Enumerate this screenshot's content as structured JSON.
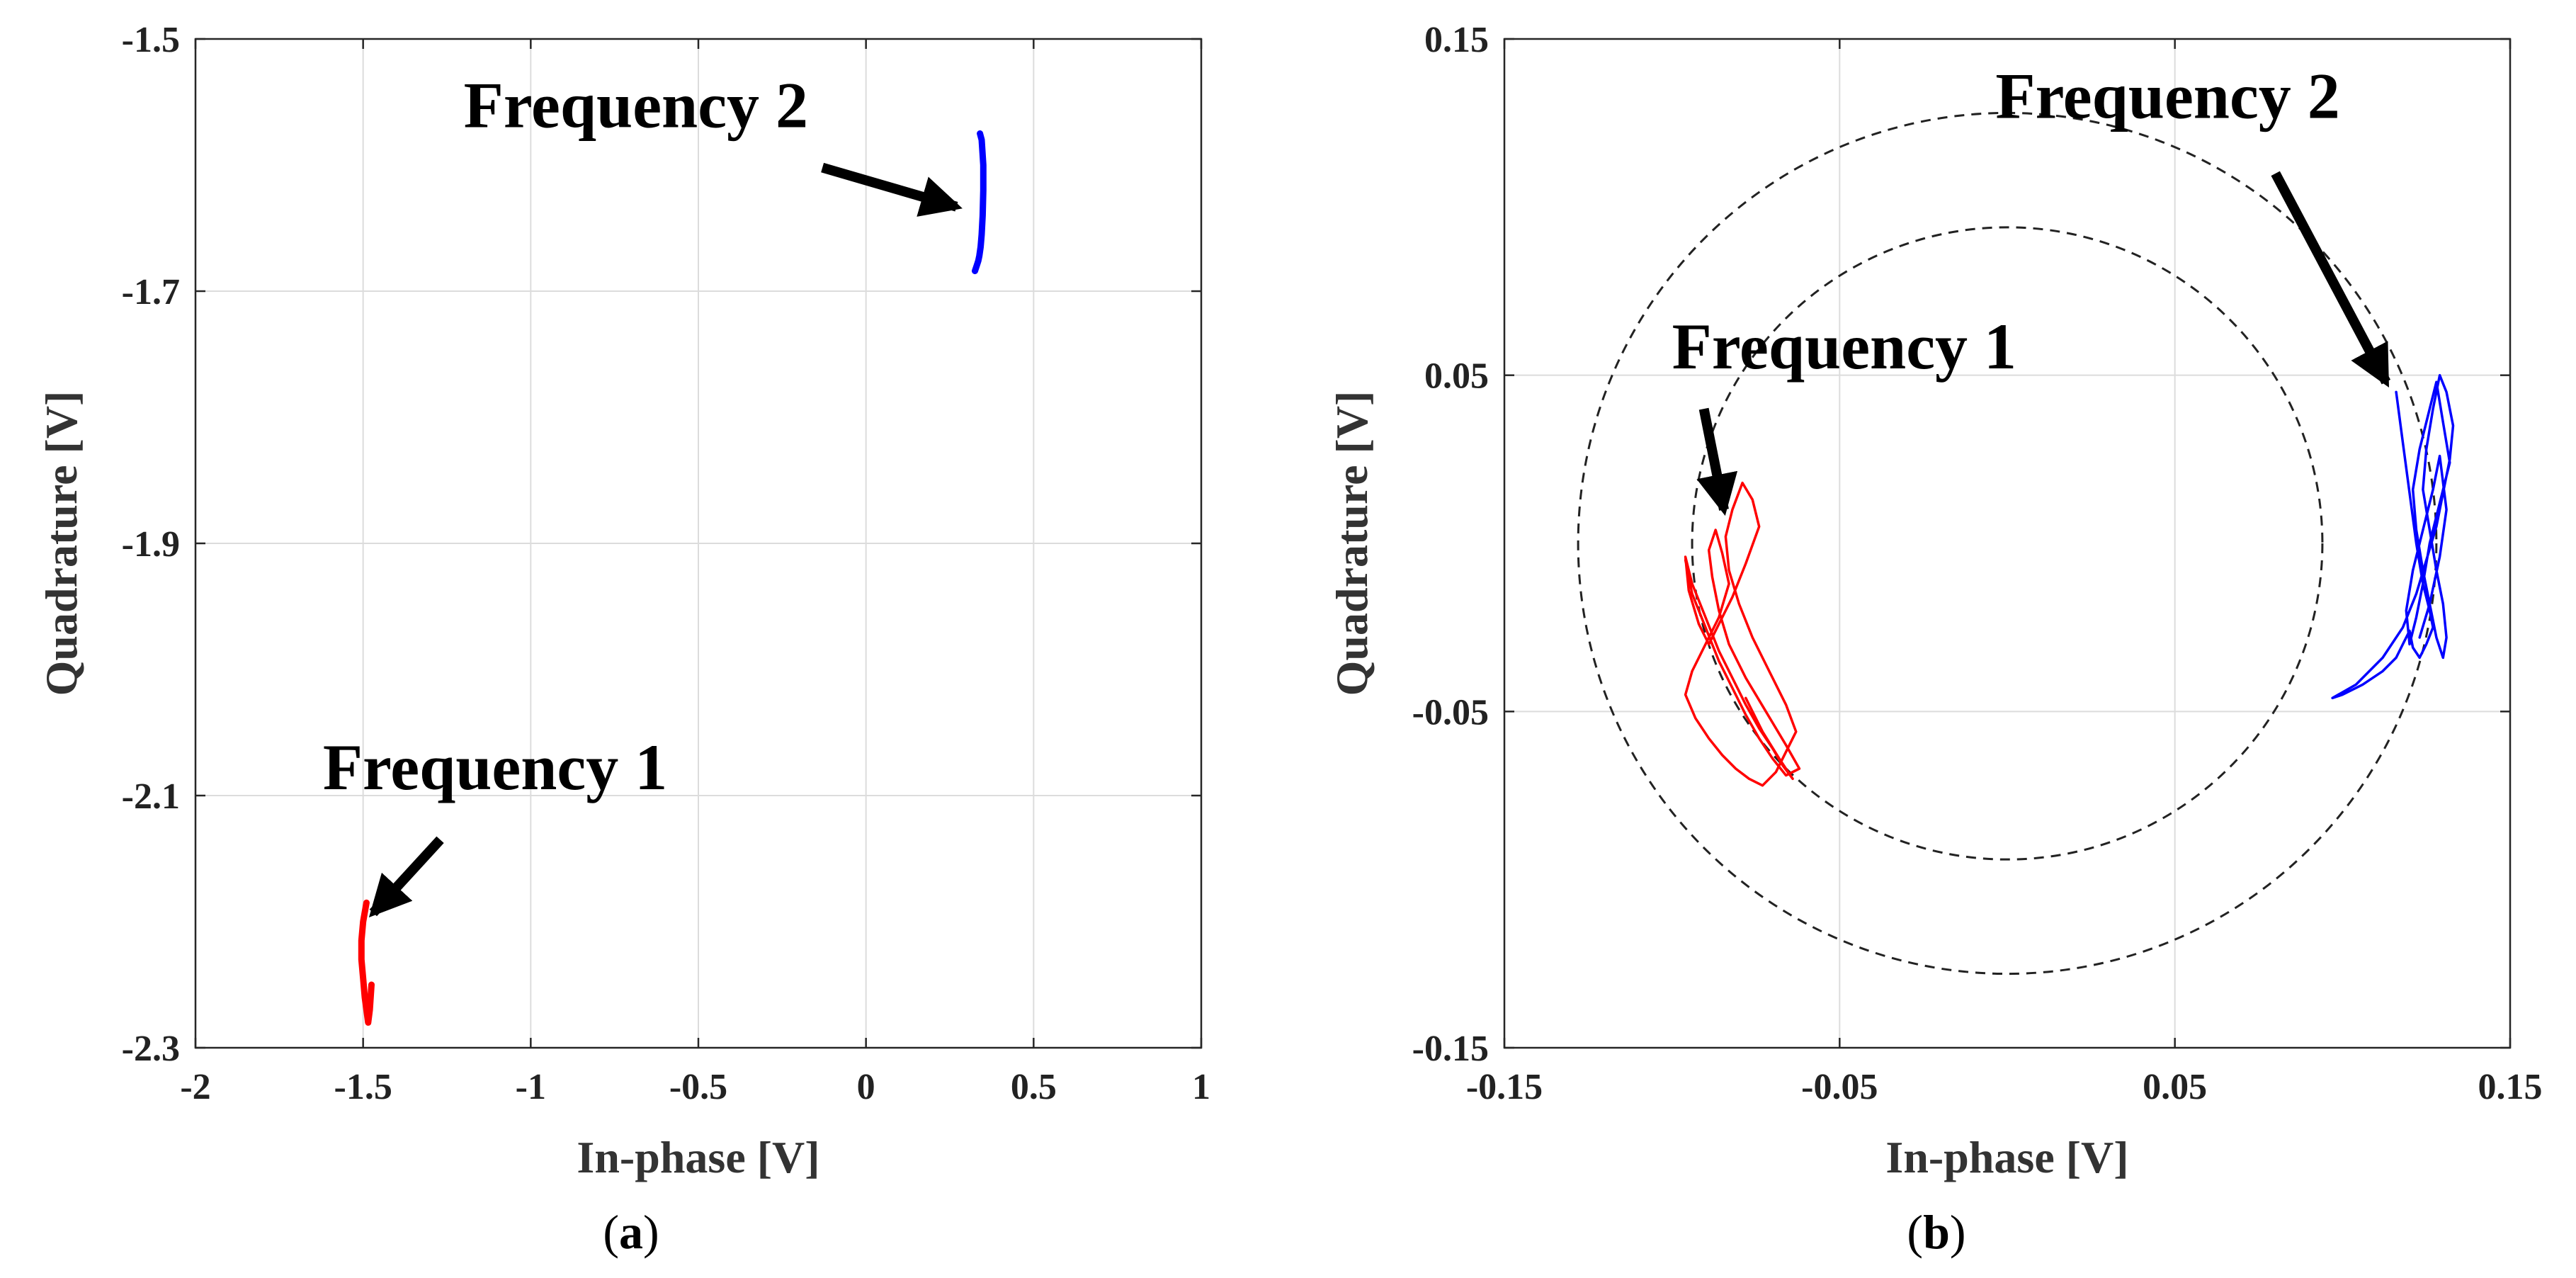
{
  "chart_data": [
    {
      "id": "a",
      "type": "line",
      "panel_label": "a",
      "xlabel": "In-phase [V]",
      "ylabel": "Quadrature [V]",
      "xlim": [
        -2,
        1
      ],
      "ylim": [
        -2.3,
        -1.5
      ],
      "xticks": [
        -2,
        -1.5,
        -1,
        -0.5,
        0,
        0.5,
        1
      ],
      "xtick_labels": [
        "-2",
        "-1.5",
        "-1",
        "-0.5",
        "0",
        "0.5",
        "1"
      ],
      "yticks": [
        -2.3,
        -2.1,
        -1.9,
        -1.7,
        -1.5
      ],
      "ytick_labels": [
        "-2.3",
        "-2.1",
        "-1.9",
        "-1.7",
        "-1.5"
      ],
      "grid": true,
      "series": [
        {
          "name": "Frequency 1",
          "color": "#ff0000",
          "x": [
            -1.49,
            -1.5,
            -1.505,
            -1.505,
            -1.5,
            -1.495,
            -1.49,
            -1.485,
            -1.48,
            -1.475
          ],
          "y": [
            -2.185,
            -2.2,
            -2.215,
            -2.23,
            -2.245,
            -2.26,
            -2.27,
            -2.28,
            -2.27,
            -2.25
          ]
        },
        {
          "name": "Frequency 2",
          "color": "#0000ff",
          "x": [
            0.34,
            0.345,
            0.35,
            0.35,
            0.348,
            0.345,
            0.342,
            0.338,
            0.335,
            0.33,
            0.325
          ],
          "y": [
            -1.575,
            -1.58,
            -1.6,
            -1.62,
            -1.64,
            -1.655,
            -1.665,
            -1.672,
            -1.676,
            -1.68,
            -1.684
          ]
        }
      ],
      "annotations": [
        {
          "text": "Frequency 2",
          "label_at": [
            -1.2,
            -1.57
          ],
          "arrow_from": [
            -0.13,
            -1.602
          ],
          "arrow_to": [
            0.27,
            -1.633
          ]
        },
        {
          "text": "Frequency 1",
          "label_at": [
            -1.62,
            -2.095
          ],
          "arrow_from": [
            -1.27,
            -2.135
          ],
          "arrow_to": [
            -1.47,
            -2.193
          ]
        }
      ]
    },
    {
      "id": "b",
      "type": "line",
      "panel_label": "b",
      "xlabel": "In-phase [V]",
      "ylabel": "Quadrature [V]",
      "xlim": [
        -0.15,
        0.15
      ],
      "ylim": [
        -0.15,
        0.15
      ],
      "xticks": [
        -0.15,
        -0.05,
        0.05,
        0.15
      ],
      "xtick_labels": [
        "-0.15",
        "-0.05",
        "0.05",
        "0.15"
      ],
      "yticks": [
        -0.15,
        -0.05,
        0.05,
        0.15
      ],
      "ytick_labels": [
        "-0.15",
        "-0.05",
        "0.05",
        "0.15"
      ],
      "grid": true,
      "circles": [
        {
          "cx": 0,
          "cy": 0,
          "r": 0.094,
          "style": "dashed"
        },
        {
          "cx": 0,
          "cy": 0,
          "r": 0.128,
          "style": "dashed"
        }
      ],
      "series": [
        {
          "name": "Frequency 1",
          "color": "#ff0000",
          "x": [
            -0.096,
            -0.094,
            -0.09,
            -0.086,
            -0.082,
            -0.078,
            -0.074,
            -0.07,
            -0.066,
            -0.062,
            -0.066,
            -0.072,
            -0.078,
            -0.083,
            -0.086,
            -0.088,
            -0.089,
            -0.087,
            -0.085,
            -0.083,
            -0.086,
            -0.09,
            -0.094,
            -0.096,
            -0.093,
            -0.089,
            -0.085,
            -0.081,
            -0.077,
            -0.073,
            -0.069,
            -0.066,
            -0.063,
            -0.066,
            -0.071,
            -0.076,
            -0.08,
            -0.083,
            -0.084,
            -0.082,
            -0.079,
            -0.076,
            -0.074,
            -0.078,
            -0.082,
            -0.086,
            -0.089,
            -0.092,
            -0.095,
            -0.096,
            -0.094,
            -0.09,
            -0.086,
            -0.082,
            -0.078,
            -0.074,
            -0.07,
            -0.067,
            -0.064,
            -0.068,
            -0.073,
            -0.078
          ],
          "y": [
            -0.005,
            -0.015,
            -0.025,
            -0.035,
            -0.043,
            -0.051,
            -0.058,
            -0.064,
            -0.069,
            -0.067,
            -0.06,
            -0.05,
            -0.04,
            -0.03,
            -0.02,
            -0.01,
            -0.002,
            0.004,
            -0.003,
            -0.012,
            -0.022,
            -0.03,
            -0.038,
            -0.045,
            -0.052,
            -0.058,
            -0.063,
            -0.067,
            -0.07,
            -0.072,
            -0.068,
            -0.062,
            -0.056,
            -0.048,
            -0.038,
            -0.028,
            -0.018,
            -0.008,
            0.002,
            0.01,
            0.018,
            0.013,
            0.005,
            -0.006,
            -0.016,
            -0.024,
            -0.03,
            -0.024,
            -0.014,
            -0.004,
            -0.012,
            -0.022,
            -0.032,
            -0.04,
            -0.048,
            -0.055,
            -0.061,
            -0.066,
            -0.07,
            -0.064,
            -0.056,
            -0.046
          ]
        },
        {
          "name": "Frequency 2",
          "color": "#0000ff",
          "x": [
            0.116,
            0.118,
            0.12,
            0.122,
            0.124,
            0.126,
            0.127,
            0.125,
            0.123,
            0.121,
            0.12,
            0.118,
            0.116,
            0.112,
            0.106,
            0.1,
            0.097,
            0.104,
            0.112,
            0.118,
            0.122,
            0.125,
            0.128,
            0.13,
            0.132,
            0.133,
            0.131,
            0.129,
            0.127,
            0.125,
            0.124,
            0.126,
            0.128,
            0.13,
            0.131,
            0.13,
            0.128,
            0.126,
            0.124,
            0.122,
            0.121,
            0.123,
            0.126,
            0.128,
            0.13,
            0.132,
            0.129,
            0.126,
            0.124,
            0.122,
            0.12,
            0.119,
            0.121,
            0.124,
            0.127,
            0.129,
            0.131,
            0.129,
            0.126,
            0.123
          ],
          "y": [
            0.045,
            0.03,
            0.015,
            0.0,
            -0.012,
            -0.02,
            -0.025,
            -0.03,
            -0.034,
            -0.031,
            -0.026,
            -0.03,
            -0.034,
            -0.038,
            -0.042,
            -0.045,
            -0.046,
            -0.042,
            -0.034,
            -0.025,
            -0.015,
            -0.005,
            0.005,
            0.015,
            0.025,
            0.035,
            0.045,
            0.05,
            0.04,
            0.028,
            0.016,
            0.004,
            -0.008,
            -0.018,
            -0.028,
            -0.034,
            -0.028,
            -0.018,
            -0.008,
            0.004,
            0.016,
            0.028,
            0.04,
            0.048,
            0.036,
            0.024,
            0.012,
            0.0,
            -0.012,
            -0.022,
            -0.03,
            -0.02,
            -0.008,
            0.004,
            0.016,
            0.026,
            0.01,
            -0.004,
            -0.018,
            -0.028
          ]
        }
      ],
      "annotations": [
        {
          "text": "Frequency 2",
          "label_at": [
            -0.0035,
            0.1265
          ],
          "arrow_from": [
            0.08,
            0.11
          ],
          "arrow_to": [
            0.113,
            0.048
          ]
        },
        {
          "text": "Frequency 1",
          "label_at": [
            -0.1,
            0.052
          ],
          "arrow_from": [
            -0.0905,
            0.04
          ],
          "arrow_to": [
            -0.0845,
            0.01
          ]
        }
      ]
    }
  ]
}
